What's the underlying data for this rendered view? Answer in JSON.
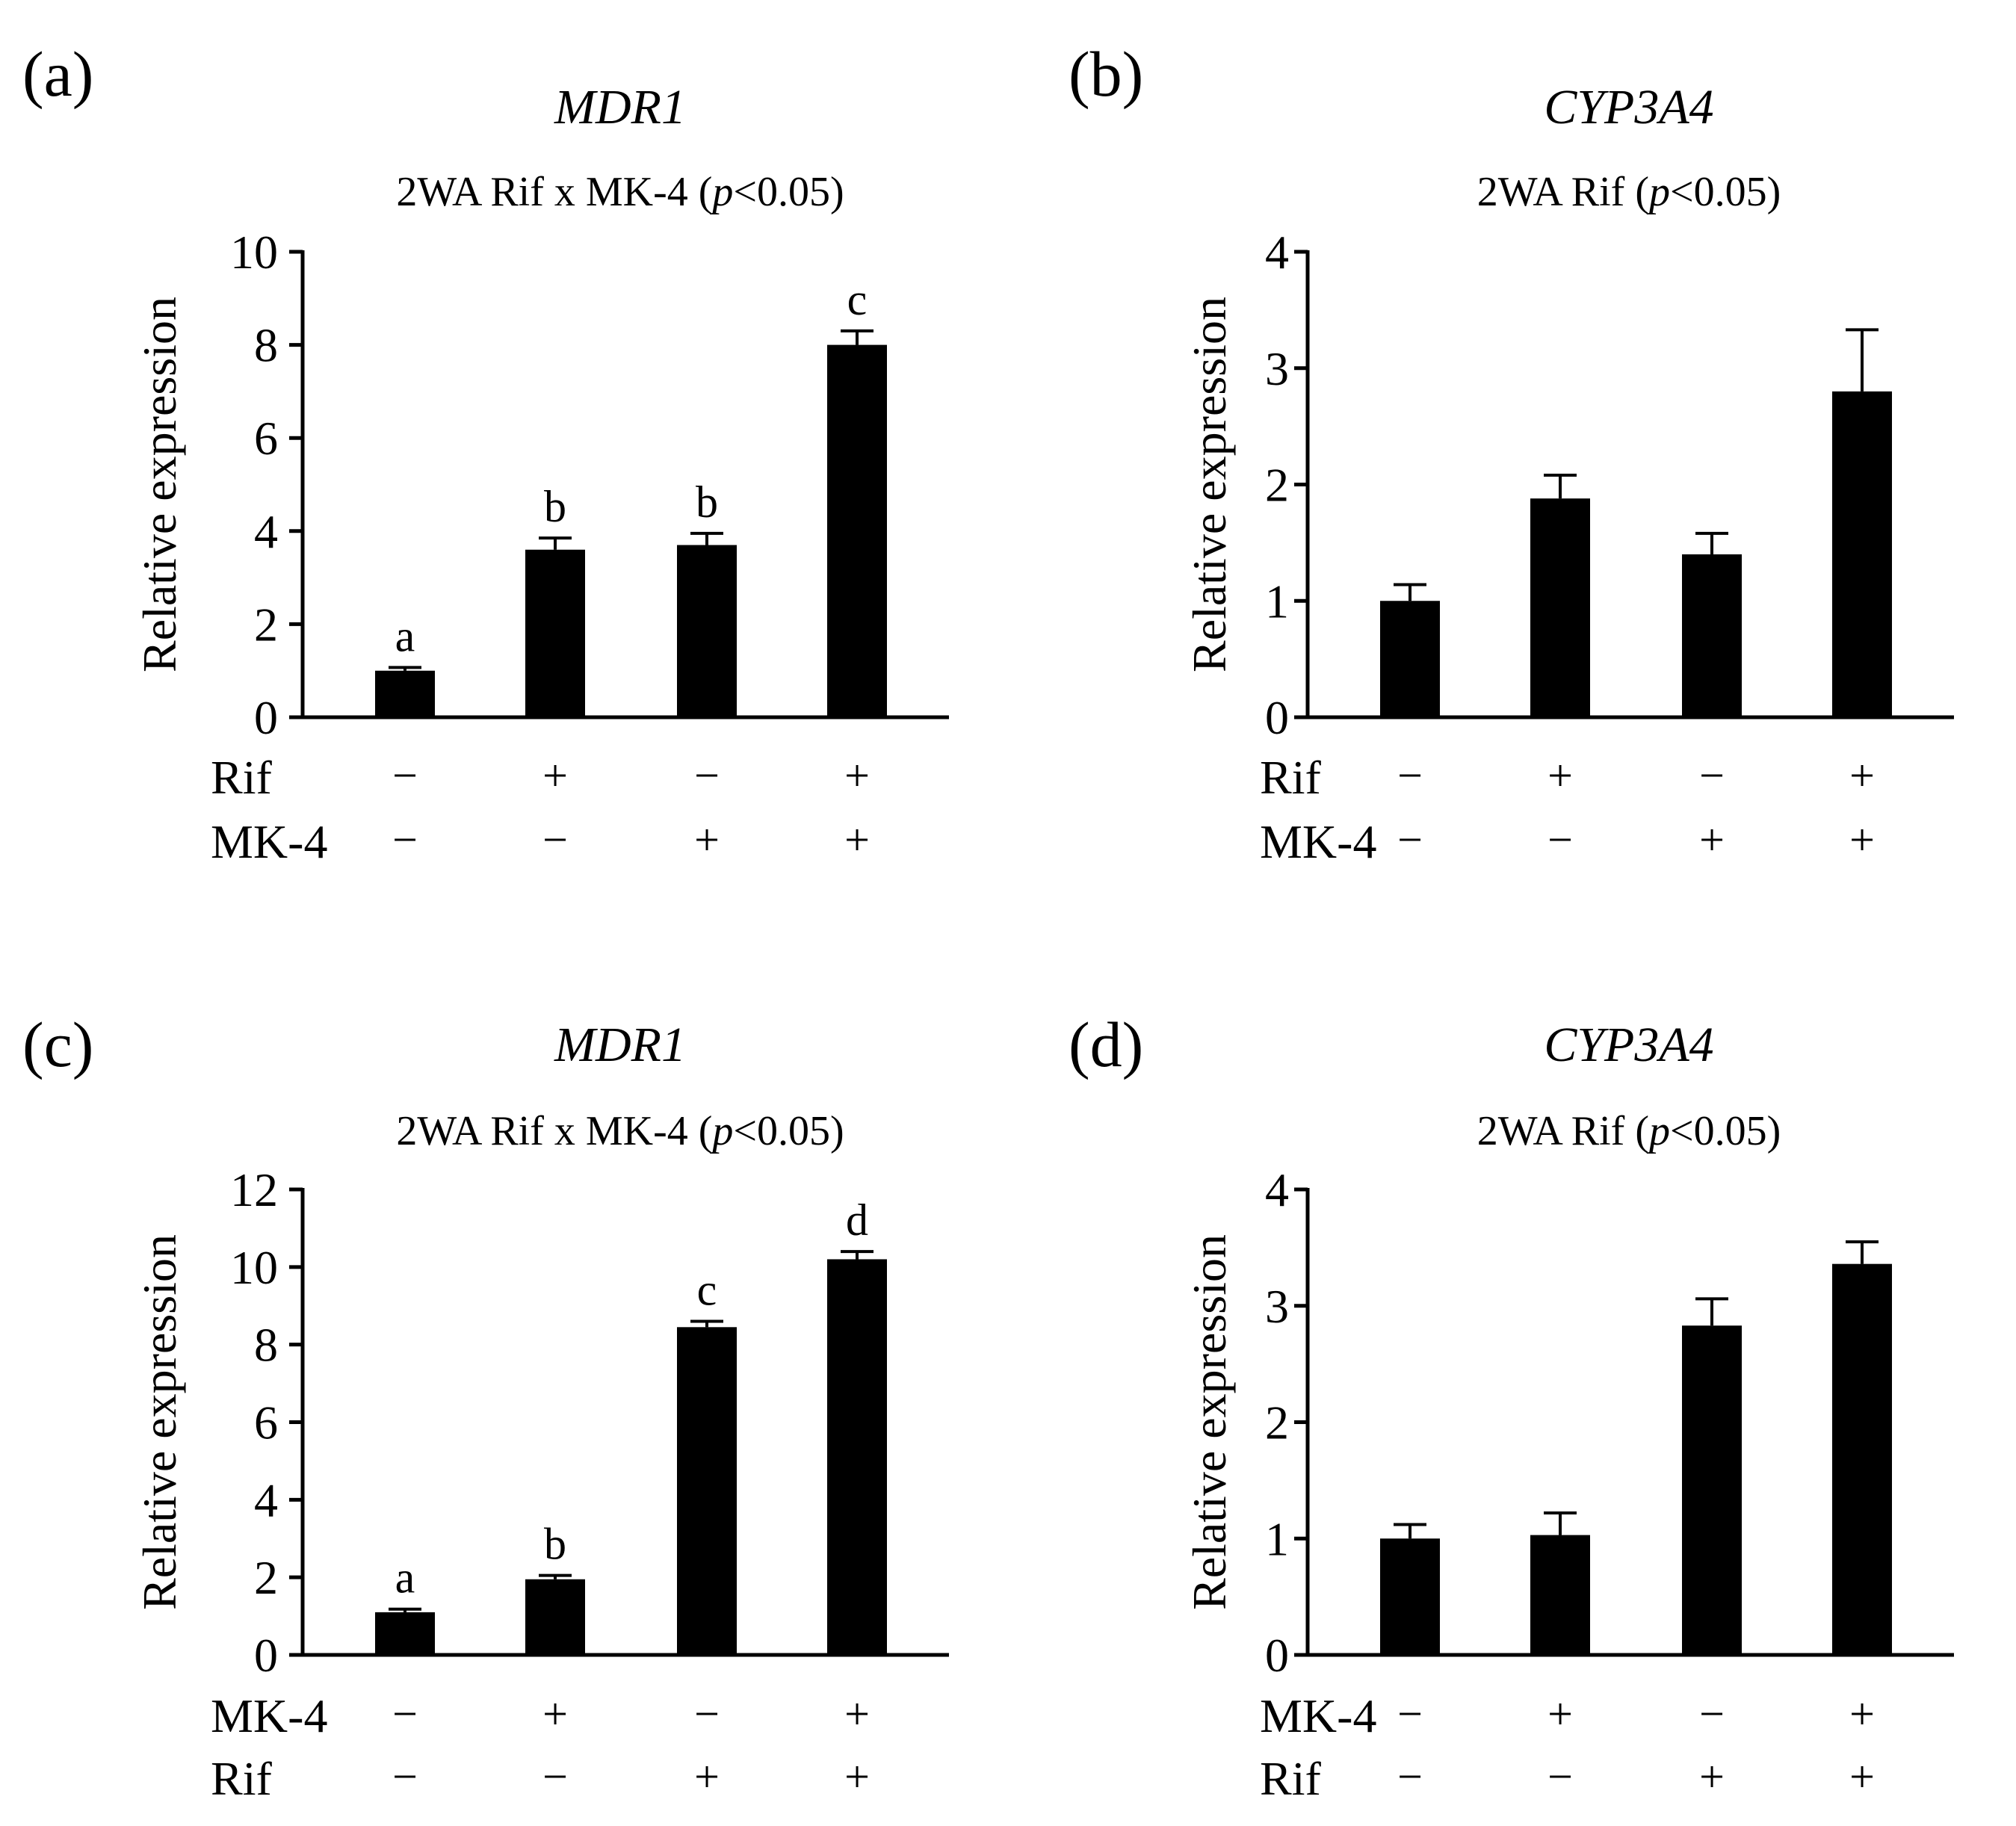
{
  "chart_data": [
    {
      "panel_label": "(a)",
      "type": "bar",
      "title": "MDR1",
      "subtitle_prefix": "2WA Rif x MK-4 (",
      "subtitle_italic": "p",
      "subtitle_suffix": "<0.05)",
      "ylabel": "Relative expression",
      "ylim": [
        0,
        10
      ],
      "yticks": [
        "0",
        "2",
        "4",
        "6",
        "8",
        "10"
      ],
      "values": [
        1.0,
        3.6,
        3.7,
        8.0
      ],
      "errors": [
        0.07,
        0.25,
        0.25,
        0.3
      ],
      "sig_letters": [
        "a",
        "b",
        "b",
        "c"
      ],
      "factor_rows": [
        {
          "name": "Rif",
          "signs": [
            "−",
            "+",
            "−",
            "+"
          ]
        },
        {
          "name": "MK-4",
          "signs": [
            "−",
            "−",
            "+",
            "+"
          ]
        }
      ]
    },
    {
      "panel_label": "(b)",
      "type": "bar",
      "title": "CYP3A4",
      "subtitle_prefix": "2WA Rif  (",
      "subtitle_italic": "p",
      "subtitle_suffix": "<0.05)",
      "ylabel": "Relative expression",
      "ylim": [
        0,
        4
      ],
      "yticks": [
        "0",
        "1",
        "2",
        "3",
        "4"
      ],
      "values": [
        1.0,
        1.88,
        1.4,
        2.8
      ],
      "errors": [
        0.14,
        0.2,
        0.18,
        0.53
      ],
      "sig_letters": [
        "",
        "",
        "",
        ""
      ],
      "factor_rows": [
        {
          "name": "Rif",
          "signs": [
            "−",
            "+",
            "−",
            "+"
          ]
        },
        {
          "name": "MK-4",
          "signs": [
            "−",
            "−",
            "+",
            "+"
          ]
        }
      ]
    },
    {
      "panel_label": "(c)",
      "type": "bar",
      "title": "MDR1",
      "subtitle_prefix": "2WA Rif x MK-4 (",
      "subtitle_italic": "p",
      "subtitle_suffix": "<0.05)",
      "ylabel": "Relative expression",
      "ylim": [
        0,
        12
      ],
      "yticks": [
        "0",
        "2",
        "4",
        "6",
        "8",
        "10",
        "12"
      ],
      "values": [
        1.1,
        1.95,
        8.45,
        10.2
      ],
      "errors": [
        0.08,
        0.1,
        0.15,
        0.2
      ],
      "sig_letters": [
        "a",
        "b",
        "c",
        "d"
      ],
      "factor_rows": [
        {
          "name": "MK-4",
          "signs": [
            "−",
            "+",
            "−",
            "+"
          ]
        },
        {
          "name": "Rif",
          "signs": [
            "−",
            "−",
            "+",
            "+"
          ]
        }
      ]
    },
    {
      "panel_label": "(d)",
      "type": "bar",
      "title": "CYP3A4",
      "subtitle_prefix": "2WA Rif  (",
      "subtitle_italic": "p",
      "subtitle_suffix": "<0.05)",
      "ylabel": "Relative expression",
      "ylim": [
        0,
        4
      ],
      "yticks": [
        "0",
        "1",
        "2",
        "3",
        "4"
      ],
      "values": [
        1.0,
        1.03,
        2.83,
        3.36
      ],
      "errors": [
        0.12,
        0.19,
        0.23,
        0.19
      ],
      "sig_letters": [
        "",
        "",
        "",
        ""
      ],
      "factor_rows": [
        {
          "name": "MK-4",
          "signs": [
            "−",
            "+",
            "−",
            "+"
          ]
        },
        {
          "name": "Rif",
          "signs": [
            "−",
            "−",
            "+",
            "+"
          ]
        }
      ]
    }
  ]
}
